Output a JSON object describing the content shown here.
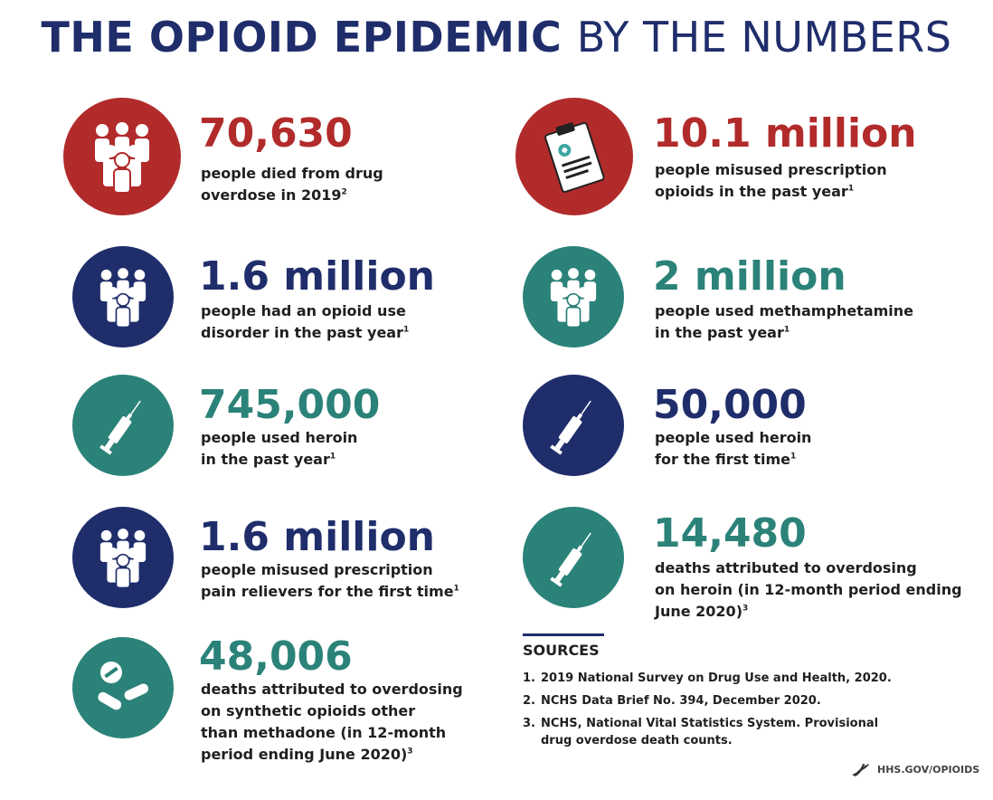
{
  "title": {
    "bold": "THE OPIOID EPIDEMIC",
    "light": "BY THE NUMBERS"
  },
  "stats_left": [
    {
      "number": "70,630",
      "lines": [
        "people died from drug",
        "overdose in 2019"
      ],
      "sup": "2",
      "color": "#b22b2b",
      "icon": "people-icon"
    },
    {
      "number": "1.6 million",
      "lines": [
        "people had an opioid use",
        "disorder in the past year"
      ],
      "sup": "1",
      "color": "#1f2d6b",
      "icon": "people-icon"
    },
    {
      "number": "745,000",
      "lines": [
        "people used heroin",
        "in the past year"
      ],
      "sup": "1",
      "color": "#2b8278",
      "icon": "syringe-icon"
    },
    {
      "number": "1.6 million",
      "lines": [
        "people misused prescription",
        "pain relievers for the first time"
      ],
      "sup": "1",
      "color": "#1f2d6b",
      "icon": "people-icon"
    },
    {
      "number": "48,006",
      "lines": [
        "deaths attributed to overdosing",
        "on synthetic opioids other",
        "than methadone (in 12-month",
        "period ending June 2020)"
      ],
      "sup": "3",
      "color": "#2b8278",
      "icon": "pills-icon"
    }
  ],
  "stats_right": [
    {
      "number": "10.1 million",
      "lines": [
        "people misused prescription",
        "opioids in the past year"
      ],
      "sup": "1",
      "color": "#b22b2b",
      "icon": "clipboard-icon"
    },
    {
      "number": "2 million",
      "lines": [
        "people used methamphetamine",
        "in the past year"
      ],
      "sup": "1",
      "color": "#2b8278",
      "icon": "people-icon"
    },
    {
      "number": "50,000",
      "lines": [
        "people used heroin",
        "for the first time"
      ],
      "sup": "1",
      "color": "#1f2d6b",
      "icon": "syringe-icon"
    },
    {
      "number": "14,480",
      "lines": [
        "deaths attributed to overdosing",
        "on heroin (in 12-month period ending",
        "June 2020)"
      ],
      "sup": "3",
      "color": "#2b8278",
      "icon": "syringe-icon"
    }
  ],
  "sources": {
    "heading": "SOURCES",
    "items": [
      {
        "n": "1.",
        "lines": [
          "2019 National Survey on Drug Use and Health, 2020."
        ]
      },
      {
        "n": "2.",
        "lines": [
          "NCHS Data Brief No. 394, December 2020."
        ]
      },
      {
        "n": "3.",
        "lines": [
          "NCHS, National Vital Statistics System. Provisional",
          "drug overdose death counts."
        ]
      }
    ]
  },
  "footer": {
    "text": "HHS.GOV/OPIOIDS"
  }
}
